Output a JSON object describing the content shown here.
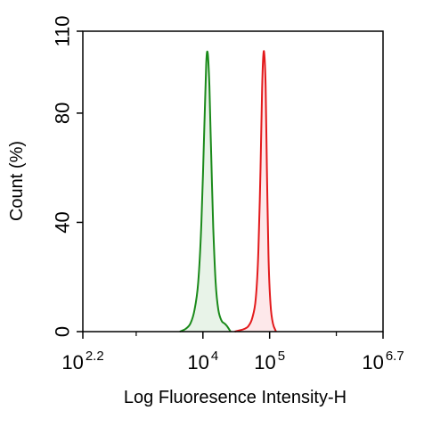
{
  "chart_data": {
    "type": "area",
    "title": "",
    "xlabel": "Log Fluoresence Intensity-H",
    "ylabel": "Count  (%)",
    "x_scale": "log10",
    "xlim": [
      158.489,
      5011872.3
    ],
    "ylim": [
      0,
      110
    ],
    "grid": false,
    "legend": "none",
    "x_ticks": [
      {
        "base": "10",
        "exp": "2.2",
        "value": 158.489
      },
      {
        "base": "10",
        "exp": "4",
        "value": 10000
      },
      {
        "base": "10",
        "exp": "5",
        "value": 100000
      },
      {
        "base": "10",
        "exp": "6.7",
        "value": 5011872.3
      }
    ],
    "y_ticks": [
      "0",
      "40",
      "80",
      "110"
    ],
    "y_tick_values": [
      0,
      40,
      80,
      110
    ],
    "series": [
      {
        "color": "#1a8a1a",
        "fill": "#e8f3e8",
        "x": [
          4500,
          5500,
          6500,
          7500,
          8500,
          9500,
          10500,
          11200,
          11800,
          12500,
          13300,
          14300,
          15500,
          17000,
          19000,
          21000,
          23000,
          26000
        ],
        "y": [
          0,
          1,
          3,
          8,
          18,
          40,
          75,
          98,
          102,
          90,
          65,
          38,
          18,
          8,
          4,
          3,
          2,
          0
        ]
      },
      {
        "color": "#e31a1c",
        "fill": "#fde8ea",
        "x": [
          30000,
          36000,
          42000,
          48000,
          55000,
          62000,
          68000,
          73000,
          77000,
          80000,
          83000,
          87000,
          91000,
          96000,
          103000,
          112000,
          125000
        ],
        "y": [
          0,
          0.5,
          1,
          2,
          5,
          12,
          30,
          60,
          88,
          100,
          102,
          90,
          60,
          28,
          10,
          3,
          0
        ]
      }
    ]
  }
}
